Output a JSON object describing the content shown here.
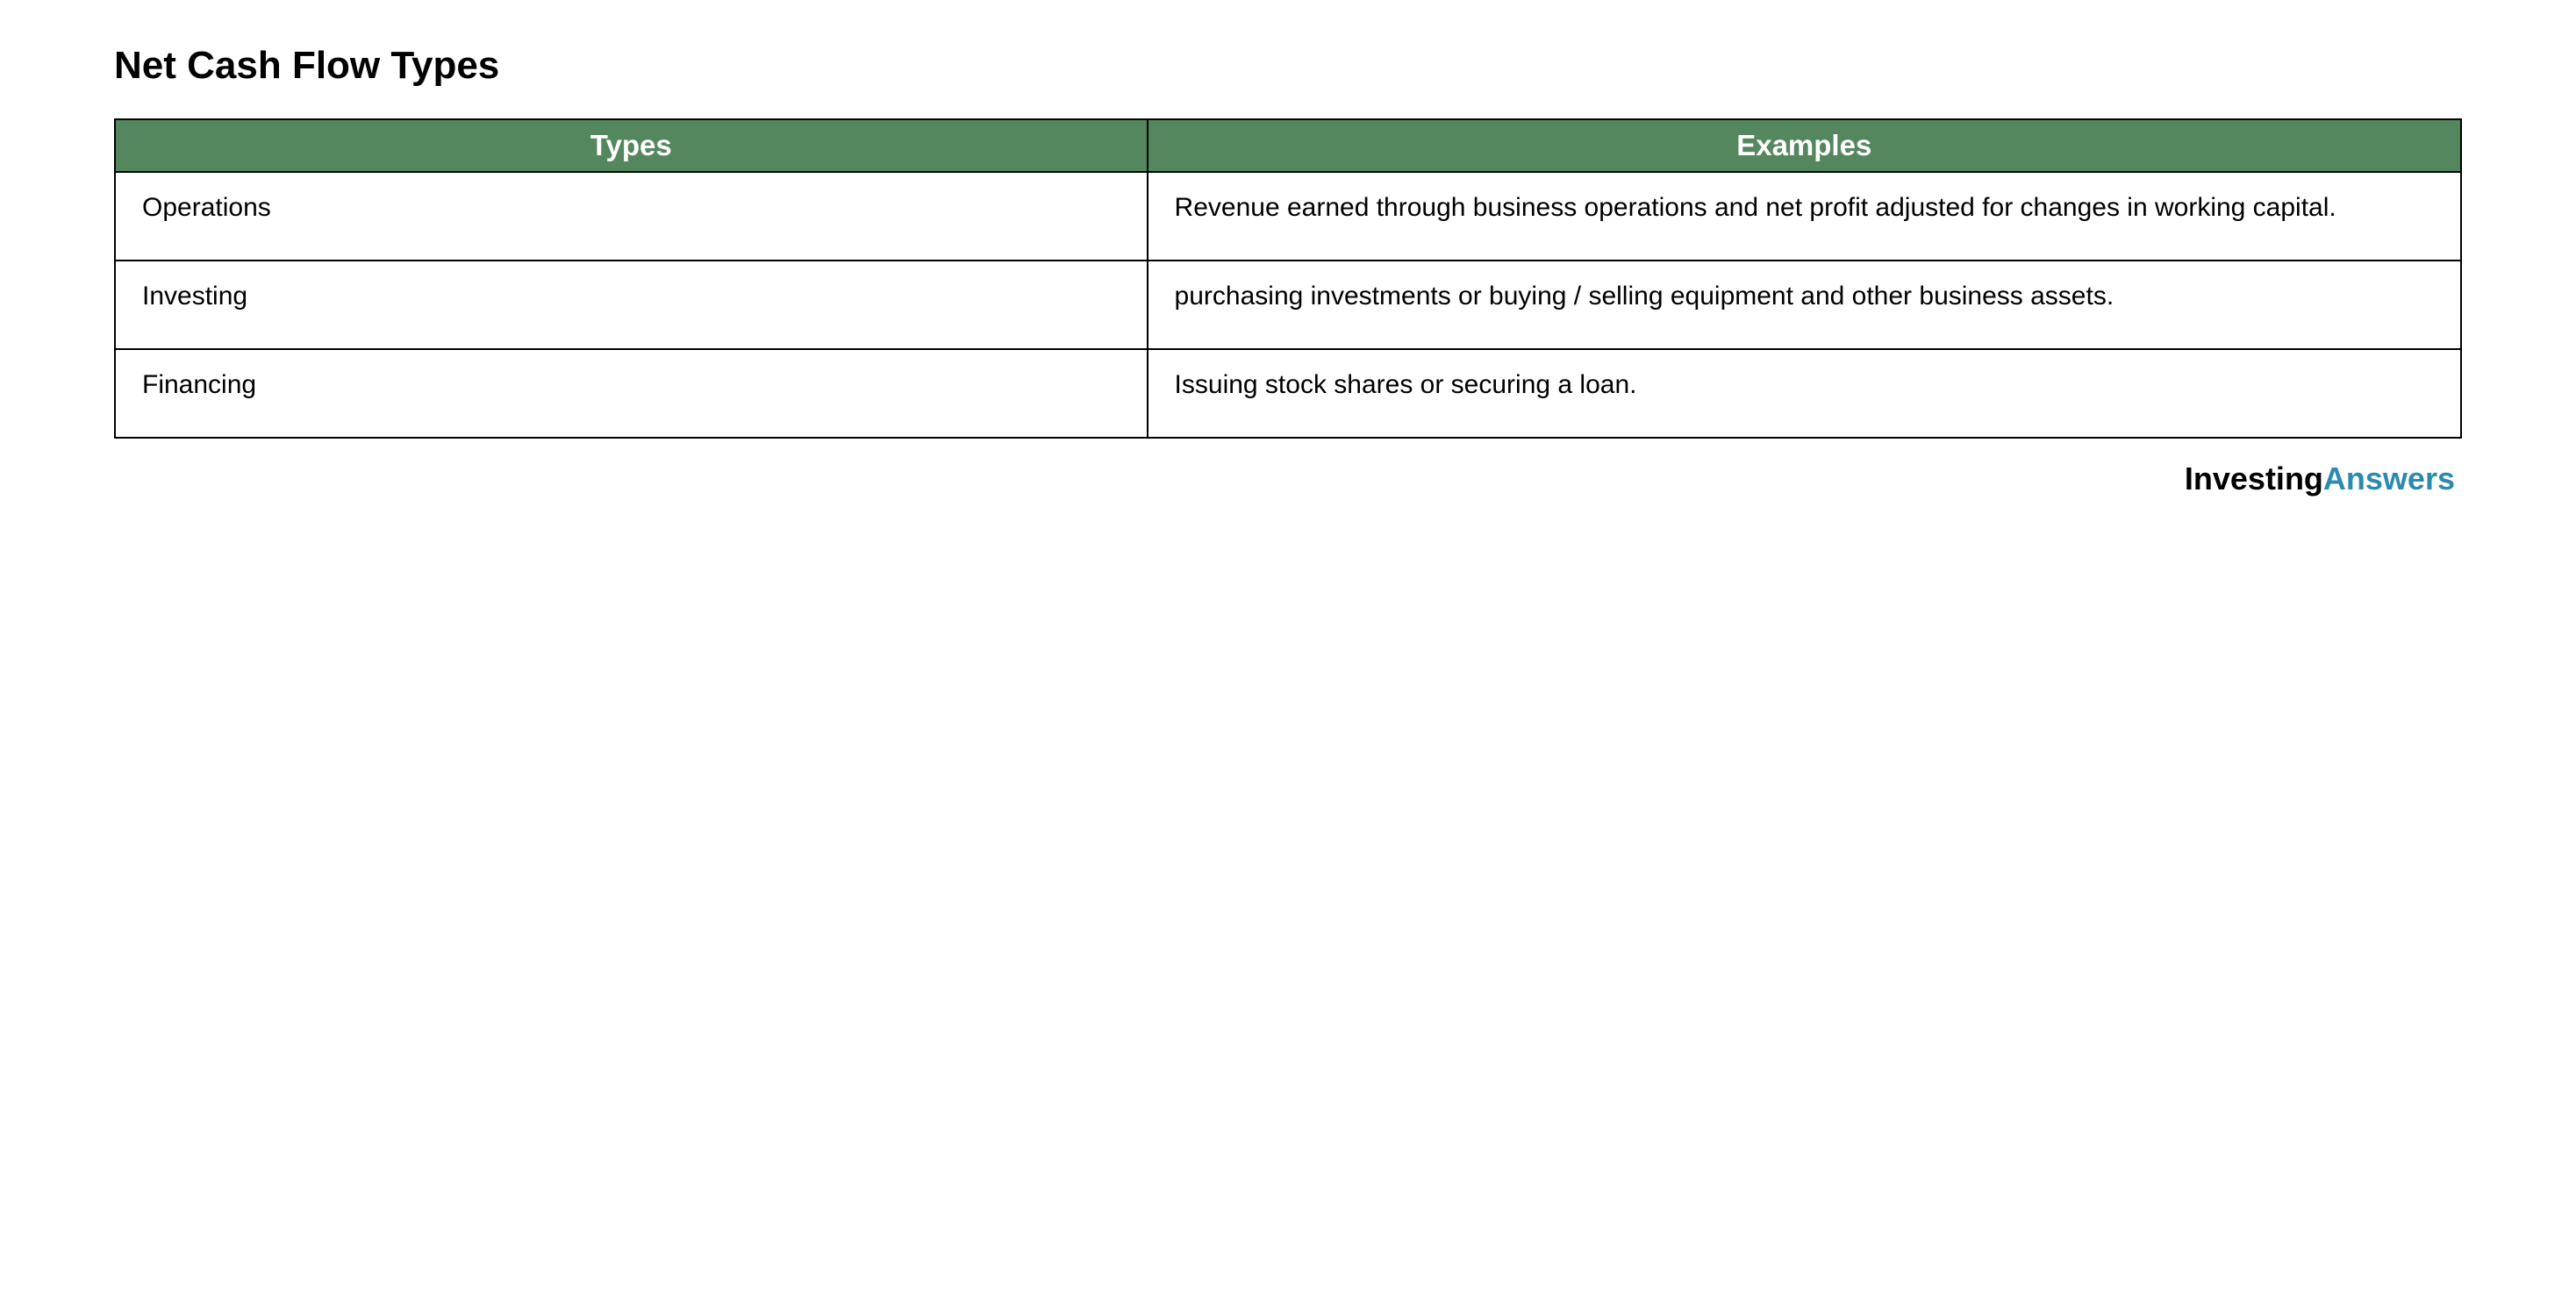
{
  "title": "Net Cash Flow Types",
  "table": {
    "columns": [
      "Types",
      "Examples"
    ],
    "rows": [
      [
        "Operations",
        "Revenue earned through business operations and net profit adjusted for changes in working capital."
      ],
      [
        "Investing",
        "purchasing investments or buying / selling equipment and other business assets."
      ],
      [
        "Financing",
        "Issuing stock shares or securing a loan."
      ]
    ],
    "header_bg_color": "#54875d",
    "header_text_color": "#ffffff",
    "border_color": "#000000",
    "cell_text_color": "#000000",
    "title_fontsize": 44,
    "header_fontsize": 33,
    "cell_fontsize": 30
  },
  "branding": {
    "part1": "Investing",
    "part2": "Answers",
    "part1_color": "#000000",
    "part2_color": "#2a8ab0",
    "fontsize": 36
  },
  "background_color": "#ffffff"
}
